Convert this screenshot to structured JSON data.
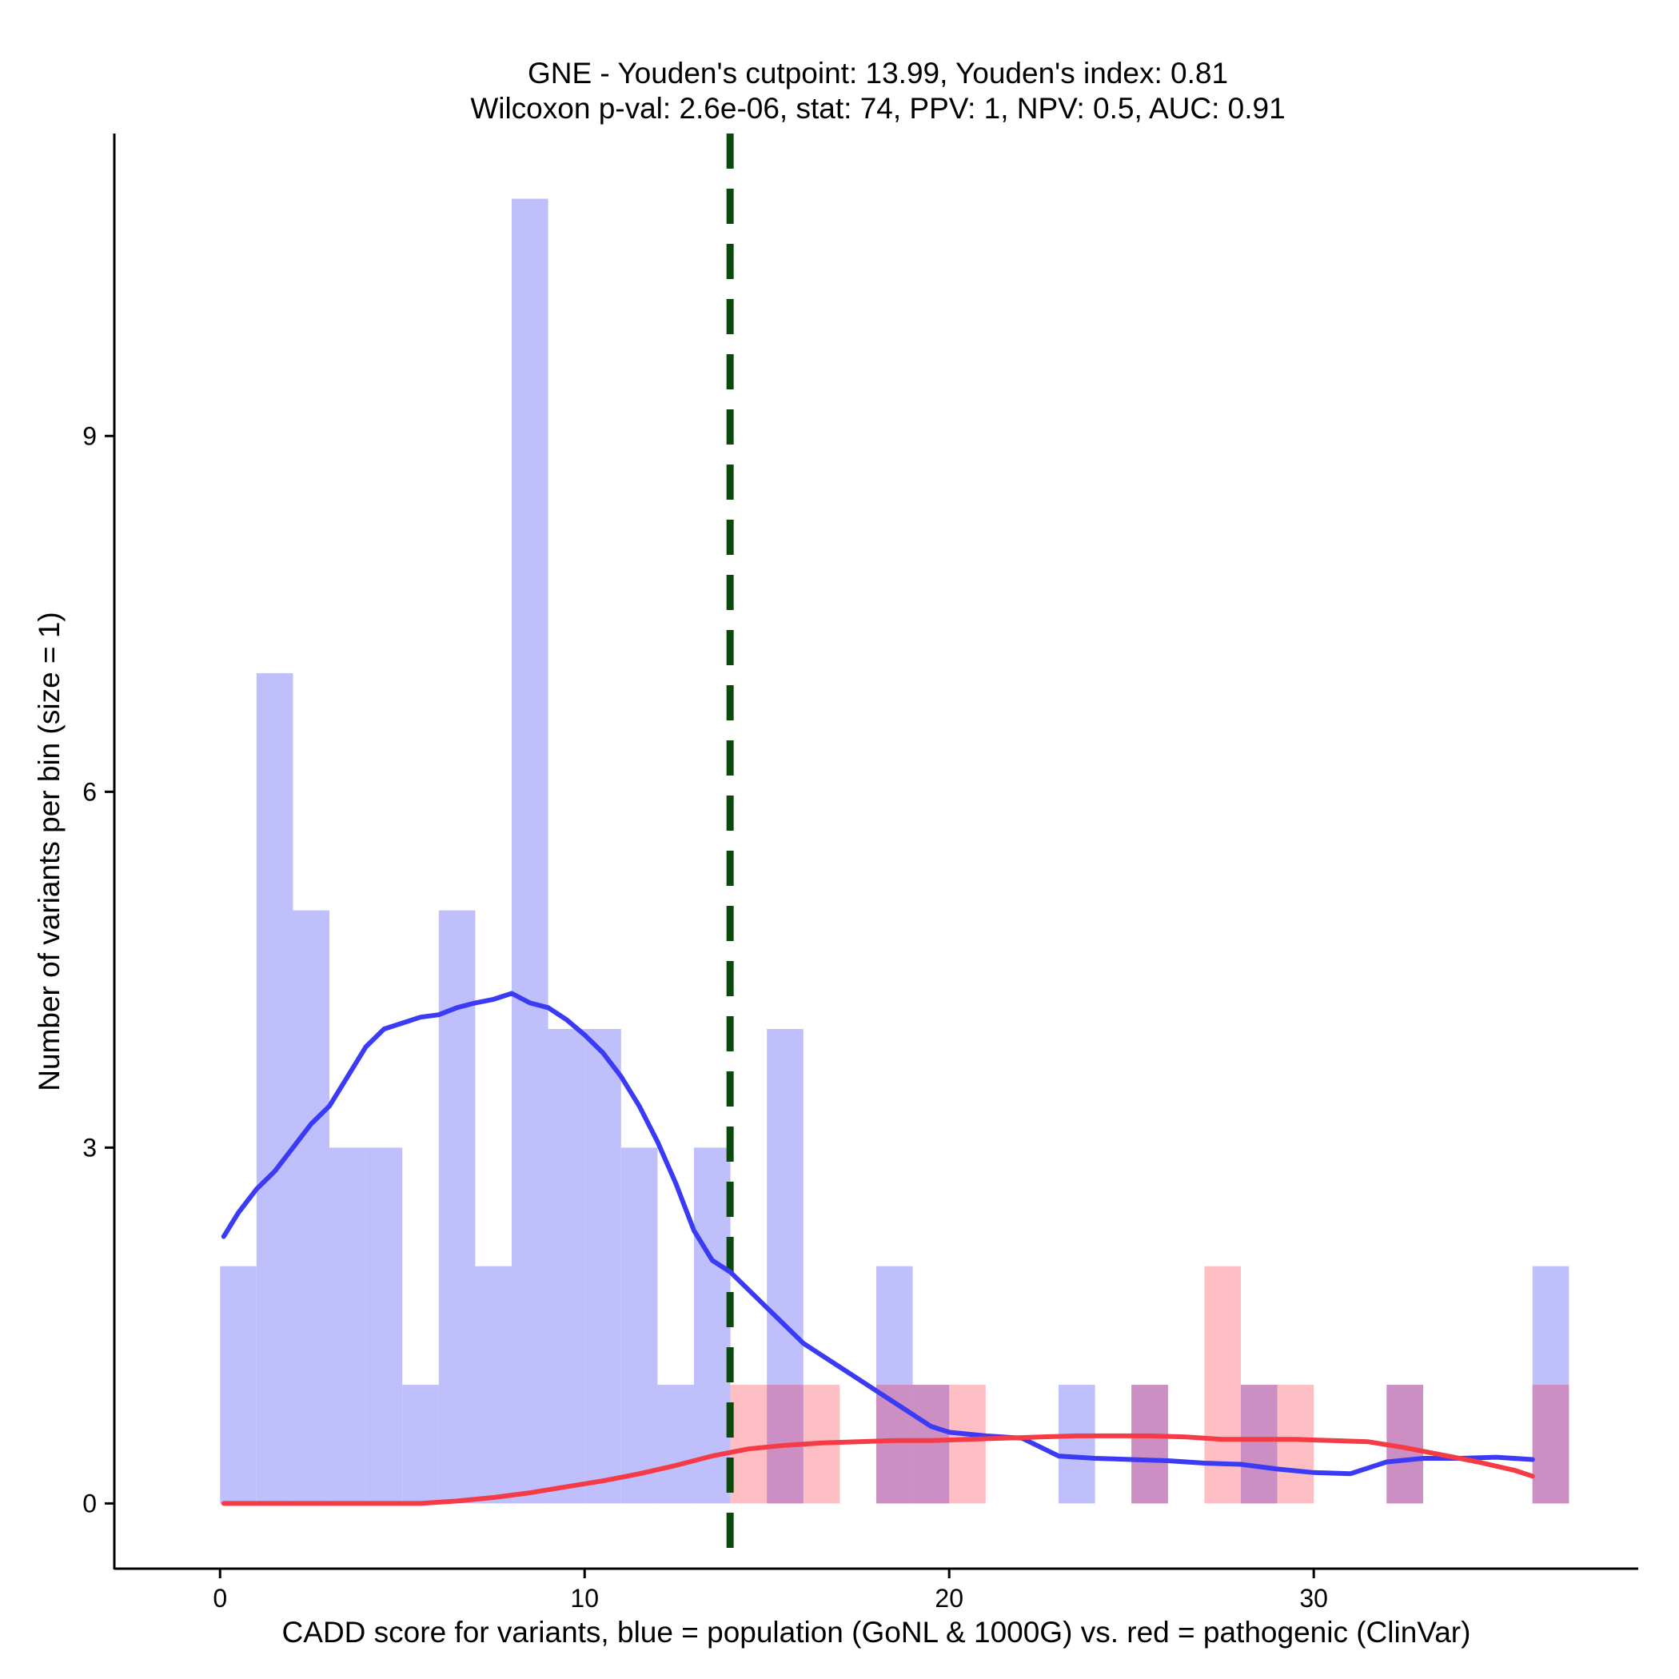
{
  "chart_data": {
    "type": "histogram",
    "title_line1": "GNE - Youden's cutpoint: 13.99, Youden's index: 0.81",
    "title_line2": "Wilcoxon p-val: 2.6e-06, stat: 74, PPV: 1, NPV: 0.5, AUC: 0.91",
    "xlabel": "CADD score for variants, blue = population (GoNL & 1000G) vs. red = pathogenic (ClinVar)",
    "ylabel": "Number of variants per bin (size = 1)",
    "xlim": [
      -2.9,
      38.9
    ],
    "ylim": [
      -0.55,
      11.55
    ],
    "x_ticks": [
      0,
      10,
      20,
      30
    ],
    "x_tick_labels": [
      "0",
      "10",
      "20",
      "30"
    ],
    "y_ticks": [
      0,
      3,
      6,
      9
    ],
    "y_tick_labels": [
      "0",
      "3",
      "6",
      "9"
    ],
    "bin_width": 1,
    "cutpoint": 13.99,
    "series": [
      {
        "name": "population (GoNL & 1000G)",
        "fill_color": "#bfbffb",
        "bins": [
          {
            "x0": 0,
            "count": 2
          },
          {
            "x0": 1,
            "count": 7
          },
          {
            "x0": 2,
            "count": 5
          },
          {
            "x0": 3,
            "count": 3
          },
          {
            "x0": 4,
            "count": 3
          },
          {
            "x0": 5,
            "count": 1
          },
          {
            "x0": 6,
            "count": 5
          },
          {
            "x0": 7,
            "count": 2
          },
          {
            "x0": 8,
            "count": 11
          },
          {
            "x0": 9,
            "count": 4
          },
          {
            "x0": 10,
            "count": 4
          },
          {
            "x0": 11,
            "count": 3
          },
          {
            "x0": 12,
            "count": 1
          },
          {
            "x0": 13,
            "count": 3
          },
          {
            "x0": 15,
            "count": 4
          },
          {
            "x0": 18,
            "count": 2
          },
          {
            "x0": 19,
            "count": 1
          },
          {
            "x0": 23,
            "count": 1
          },
          {
            "x0": 25,
            "count": 1
          },
          {
            "x0": 28,
            "count": 1
          },
          {
            "x0": 32,
            "count": 1
          },
          {
            "x0": 36,
            "count": 2
          }
        ]
      },
      {
        "name": "pathogenic (ClinVar)",
        "fill_color": "#fdbfc3",
        "bins": [
          {
            "x0": 14,
            "count": 1
          },
          {
            "x0": 15,
            "count": 1
          },
          {
            "x0": 16,
            "count": 1
          },
          {
            "x0": 18,
            "count": 1
          },
          {
            "x0": 19,
            "count": 1
          },
          {
            "x0": 20,
            "count": 1
          },
          {
            "x0": 25,
            "count": 1
          },
          {
            "x0": 27,
            "count": 2
          },
          {
            "x0": 28,
            "count": 1
          },
          {
            "x0": 29,
            "count": 1
          },
          {
            "x0": 32,
            "count": 1
          },
          {
            "x0": 36,
            "count": 1
          }
        ]
      }
    ],
    "overlap_color": "#cc8fc3",
    "density_curves": [
      {
        "name": "population density",
        "color": "#3b3bf5",
        "x": [
          0.1,
          0.5,
          1,
          1.5,
          2,
          2.5,
          3,
          3.5,
          4,
          4.5,
          5,
          5.5,
          6,
          6.5,
          7,
          7.5,
          8,
          8.5,
          9,
          9.5,
          10,
          10.5,
          11,
          11.5,
          12,
          12.5,
          13,
          13.5,
          14,
          14.5,
          15,
          15.5,
          16,
          16.5,
          17,
          17.5,
          18,
          18.5,
          19,
          19.5,
          20,
          21,
          22,
          23,
          24,
          25,
          26,
          27,
          28,
          29,
          30,
          31,
          32,
          33,
          34,
          35,
          36
        ],
        "y": [
          2.25,
          2.45,
          2.65,
          2.8,
          3.0,
          3.2,
          3.35,
          3.6,
          3.85,
          4.0,
          4.05,
          4.1,
          4.12,
          4.18,
          4.22,
          4.25,
          4.3,
          4.22,
          4.18,
          4.08,
          3.95,
          3.8,
          3.6,
          3.35,
          3.05,
          2.7,
          2.3,
          2.05,
          1.95,
          1.8,
          1.65,
          1.5,
          1.35,
          1.25,
          1.15,
          1.05,
          0.95,
          0.85,
          0.75,
          0.65,
          0.6,
          0.57,
          0.55,
          0.4,
          0.38,
          0.37,
          0.36,
          0.34,
          0.33,
          0.29,
          0.26,
          0.25,
          0.35,
          0.38,
          0.38,
          0.39,
          0.37
        ]
      },
      {
        "name": "pathogenic density",
        "color": "#f53b45",
        "x": [
          0.1,
          2,
          4,
          5.5,
          6.5,
          7.5,
          8.5,
          9.5,
          10.5,
          11.5,
          12.5,
          13.5,
          14.5,
          15.5,
          16.5,
          17.5,
          18.5,
          19.5,
          20.5,
          21.5,
          22.5,
          23.5,
          24.5,
          25.5,
          26.5,
          27.5,
          28.5,
          29.5,
          30.5,
          31.5,
          32.5,
          33.5,
          34.5,
          35.5,
          36
        ],
        "y": [
          0.0,
          0.0,
          0.0,
          0.0,
          0.02,
          0.05,
          0.09,
          0.14,
          0.19,
          0.25,
          0.32,
          0.4,
          0.46,
          0.49,
          0.51,
          0.52,
          0.53,
          0.53,
          0.54,
          0.55,
          0.56,
          0.57,
          0.57,
          0.57,
          0.56,
          0.54,
          0.54,
          0.54,
          0.53,
          0.52,
          0.47,
          0.41,
          0.35,
          0.28,
          0.23
        ]
      }
    ]
  }
}
